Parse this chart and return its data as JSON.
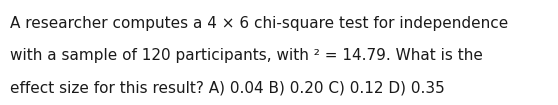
{
  "lines": [
    "A researcher computes a 4 × 6 chi-square test for independence",
    "with a sample of 120 participants, with ² = 14.79. What is the",
    "effect size for this result? A) 0.04 B) 0.20 C) 0.12 D) 0.35"
  ],
  "background_color": "#ffffff",
  "text_color": "#1a1a1a",
  "font_size": 11.0,
  "font_family": "DejaVu Sans"
}
